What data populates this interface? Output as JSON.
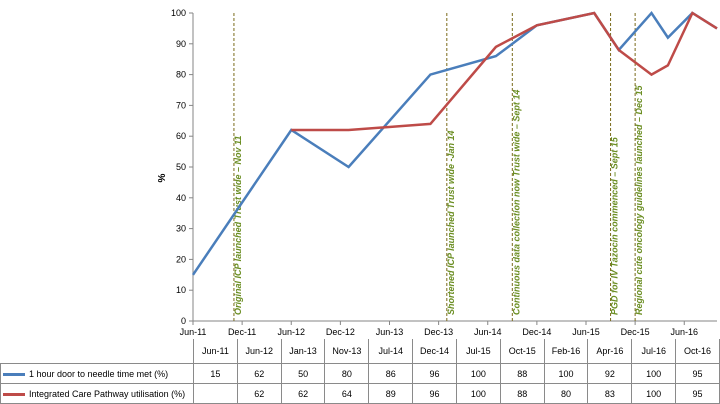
{
  "chart_data": {
    "type": "line",
    "ylabel": "%",
    "ylim": [
      0,
      100
    ],
    "yticks": [
      0,
      10,
      20,
      30,
      40,
      50,
      60,
      70,
      80,
      90,
      100
    ],
    "x_axis_labels": [
      "Jun-11",
      "Dec-11",
      "Jun-12",
      "Dec-12",
      "Jun-13",
      "Dec-13",
      "Jun-14",
      "Dec-14",
      "Jun-15",
      "Dec-15",
      "Jun-16"
    ],
    "series": [
      {
        "name": "1 hour door to needle time met (%)",
        "color": "#4a7ebb",
        "points": [
          {
            "x": "Jun-11",
            "y": 15
          },
          {
            "x": "Jun-12",
            "y": 62
          },
          {
            "x": "Jan-13",
            "y": 50
          },
          {
            "x": "Nov-13",
            "y": 80
          },
          {
            "x": "Jul-14",
            "y": 86
          },
          {
            "x": "Dec-14",
            "y": 96
          },
          {
            "x": "Jul-15",
            "y": 100
          },
          {
            "x": "Oct-15",
            "y": 88
          },
          {
            "x": "Feb-16",
            "y": 100
          },
          {
            "x": "Apr-16",
            "y": 92
          },
          {
            "x": "Jul-16",
            "y": 100
          },
          {
            "x": "Oct-16",
            "y": 95
          }
        ]
      },
      {
        "name": "Integrated Care Pathway utilisation (%)",
        "color": "#be4b48",
        "points": [
          {
            "x": "Jun-12",
            "y": 62
          },
          {
            "x": "Jan-13",
            "y": 62
          },
          {
            "x": "Nov-13",
            "y": 64
          },
          {
            "x": "Jul-14",
            "y": 89
          },
          {
            "x": "Dec-14",
            "y": 96
          },
          {
            "x": "Jul-15",
            "y": 100
          },
          {
            "x": "Oct-15",
            "y": 88
          },
          {
            "x": "Feb-16",
            "y": 80
          },
          {
            "x": "Apr-16",
            "y": 83
          },
          {
            "x": "Jul-16",
            "y": 100
          },
          {
            "x": "Oct-16",
            "y": 95
          }
        ]
      }
    ],
    "annotations": [
      {
        "date": "Nov-11",
        "text": "Original ICP launched Trust wide – Nov 11"
      },
      {
        "date": "Jan-14",
        "text": "Shortened ICP launched Trust wide -Jan 14"
      },
      {
        "date": "Sep-14",
        "text": "Continuous data collection now Trust wide – Sept 14"
      },
      {
        "date": "Sep-15",
        "text": "PGD for IV Tazocin commenced – Sept 15"
      },
      {
        "date": "Dec-15",
        "text": "Regional cute oncology guidelines launched – Dec 15"
      }
    ],
    "table": {
      "columns": [
        "Jun-11",
        "Jun-12",
        "Jan-13",
        "Nov-13",
        "Jul-14",
        "Dec-14",
        "Jul-15",
        "Oct-15",
        "Feb-16",
        "Apr-16",
        "Jul-16",
        "Oct-16"
      ],
      "rows": [
        {
          "label": "1 hour door to needle time met (%)",
          "values": [
            "15",
            "62",
            "50",
            "80",
            "86",
            "96",
            "100",
            "88",
            "100",
            "92",
            "100",
            "95"
          ]
        },
        {
          "label": "Integrated Care Pathway utilisation (%)",
          "values": [
            "",
            "62",
            "62",
            "64",
            "89",
            "96",
            "100",
            "88",
            "80",
            "83",
            "100",
            "95"
          ]
        }
      ]
    }
  }
}
